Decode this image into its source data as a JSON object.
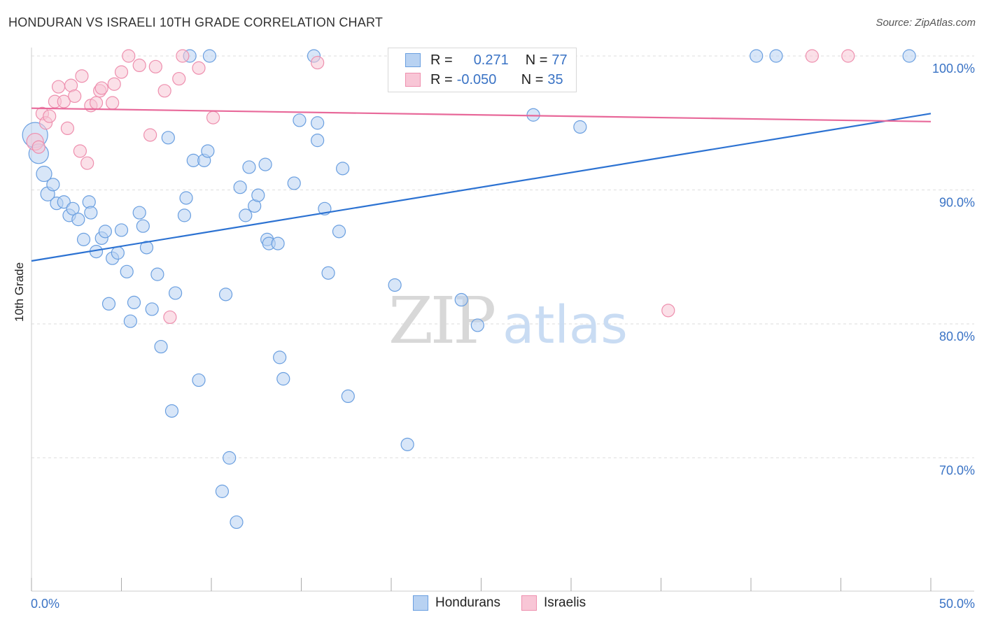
{
  "header": {
    "title": "HONDURAN VS ISRAELI 10TH GRADE CORRELATION CHART",
    "source": "Source: ZipAtlas.com"
  },
  "legend": {
    "hondurans": {
      "r_label": "R =",
      "r_value": "0.271",
      "n_label": "N =",
      "n_value": "77"
    },
    "israelis": {
      "r_label": "R =",
      "r_value": "-0.050",
      "n_label": "N =",
      "n_value": "35"
    }
  },
  "colors": {
    "blue_fill": "#b8d2f2",
    "blue_stroke": "#6a9fe0",
    "blue_line": "#2c72d2",
    "pink_fill": "#f8c6d6",
    "pink_stroke": "#ee8fae",
    "pink_line": "#e8699a",
    "axis_label": "#3a73c5",
    "grid": "#dedede"
  },
  "chart_data": {
    "type": "scatter",
    "title": "HONDURAN VS ISRAELI 10TH GRADE CORRELATION CHART",
    "xlabel": "",
    "ylabel": "10th Grade",
    "xlim": [
      0,
      50
    ],
    "ylim": [
      61.5,
      101.5
    ],
    "x_tick_labels": [
      "0.0%",
      "50.0%"
    ],
    "y_ticks": [
      70,
      80,
      90,
      100
    ],
    "y_tick_labels": [
      "70.0%",
      "80.0%",
      "90.0%",
      "100.0%"
    ],
    "grid": true,
    "legend_position": "top-center",
    "watermark": "ZIPatlas",
    "series": [
      {
        "name": "Hondurans",
        "r": 0.271,
        "n": 77,
        "trend": {
          "x": [
            0,
            50
          ],
          "y": [
            84.7,
            95.7
          ]
        },
        "points": [
          {
            "x": 0.2,
            "y": 94.1,
            "s": 18
          },
          {
            "x": 0.4,
            "y": 92.7,
            "s": 14
          },
          {
            "x": 0.7,
            "y": 91.2,
            "s": 11
          },
          {
            "x": 0.9,
            "y": 89.7,
            "s": 10
          },
          {
            "x": 1.2,
            "y": 90.4,
            "s": 9
          },
          {
            "x": 1.4,
            "y": 89.0,
            "s": 9
          },
          {
            "x": 1.8,
            "y": 89.1,
            "s": 9
          },
          {
            "x": 2.1,
            "y": 88.1,
            "s": 9
          },
          {
            "x": 2.3,
            "y": 88.6,
            "s": 9
          },
          {
            "x": 2.6,
            "y": 87.8,
            "s": 9
          },
          {
            "x": 2.9,
            "y": 86.3,
            "s": 9
          },
          {
            "x": 3.2,
            "y": 89.1,
            "s": 9
          },
          {
            "x": 3.3,
            "y": 88.3,
            "s": 9
          },
          {
            "x": 3.6,
            "y": 85.4,
            "s": 9
          },
          {
            "x": 3.9,
            "y": 86.4,
            "s": 9
          },
          {
            "x": 4.1,
            "y": 86.9,
            "s": 9
          },
          {
            "x": 4.3,
            "y": 81.5,
            "s": 9
          },
          {
            "x": 4.5,
            "y": 84.9,
            "s": 9
          },
          {
            "x": 4.8,
            "y": 85.3,
            "s": 9
          },
          {
            "x": 5.0,
            "y": 87.0,
            "s": 9
          },
          {
            "x": 5.3,
            "y": 83.9,
            "s": 9
          },
          {
            "x": 5.5,
            "y": 80.2,
            "s": 9
          },
          {
            "x": 5.7,
            "y": 81.6,
            "s": 9
          },
          {
            "x": 6.0,
            "y": 88.3,
            "s": 9
          },
          {
            "x": 6.2,
            "y": 87.3,
            "s": 9
          },
          {
            "x": 6.4,
            "y": 85.7,
            "s": 9
          },
          {
            "x": 6.7,
            "y": 81.1,
            "s": 9
          },
          {
            "x": 7.0,
            "y": 83.7,
            "s": 9
          },
          {
            "x": 7.2,
            "y": 78.3,
            "s": 9
          },
          {
            "x": 7.6,
            "y": 93.9,
            "s": 9
          },
          {
            "x": 7.8,
            "y": 73.5,
            "s": 9
          },
          {
            "x": 8.0,
            "y": 82.3,
            "s": 9
          },
          {
            "x": 8.5,
            "y": 88.1,
            "s": 9
          },
          {
            "x": 8.6,
            "y": 89.4,
            "s": 9
          },
          {
            "x": 8.8,
            "y": 100.0,
            "s": 9
          },
          {
            "x": 9.0,
            "y": 92.2,
            "s": 9
          },
          {
            "x": 9.3,
            "y": 75.8,
            "s": 9
          },
          {
            "x": 9.6,
            "y": 92.2,
            "s": 9
          },
          {
            "x": 9.8,
            "y": 92.9,
            "s": 9
          },
          {
            "x": 9.9,
            "y": 100.0,
            "s": 9
          },
          {
            "x": 10.6,
            "y": 67.5,
            "s": 9
          },
          {
            "x": 10.8,
            "y": 82.2,
            "s": 9
          },
          {
            "x": 11.0,
            "y": 70.0,
            "s": 9
          },
          {
            "x": 11.4,
            "y": 65.2,
            "s": 9
          },
          {
            "x": 11.6,
            "y": 90.2,
            "s": 9
          },
          {
            "x": 11.9,
            "y": 88.1,
            "s": 9
          },
          {
            "x": 12.1,
            "y": 91.7,
            "s": 9
          },
          {
            "x": 12.4,
            "y": 88.8,
            "s": 9
          },
          {
            "x": 12.6,
            "y": 89.6,
            "s": 9
          },
          {
            "x": 13.0,
            "y": 91.9,
            "s": 9
          },
          {
            "x": 13.1,
            "y": 86.3,
            "s": 9
          },
          {
            "x": 13.2,
            "y": 86.0,
            "s": 9
          },
          {
            "x": 13.7,
            "y": 86.0,
            "s": 9
          },
          {
            "x": 13.8,
            "y": 77.5,
            "s": 9
          },
          {
            "x": 14.0,
            "y": 75.9,
            "s": 9
          },
          {
            "x": 14.6,
            "y": 90.5,
            "s": 9
          },
          {
            "x": 14.9,
            "y": 95.2,
            "s": 9
          },
          {
            "x": 15.7,
            "y": 100.0,
            "s": 9
          },
          {
            "x": 15.9,
            "y": 93.7,
            "s": 9
          },
          {
            "x": 15.9,
            "y": 95.0,
            "s": 9
          },
          {
            "x": 16.3,
            "y": 88.6,
            "s": 9
          },
          {
            "x": 16.5,
            "y": 83.8,
            "s": 9
          },
          {
            "x": 17.1,
            "y": 86.9,
            "s": 9
          },
          {
            "x": 17.3,
            "y": 91.6,
            "s": 9
          },
          {
            "x": 17.6,
            "y": 74.6,
            "s": 9
          },
          {
            "x": 20.2,
            "y": 82.9,
            "s": 9
          },
          {
            "x": 20.9,
            "y": 71.0,
            "s": 9
          },
          {
            "x": 23.9,
            "y": 81.8,
            "s": 9
          },
          {
            "x": 24.8,
            "y": 79.9,
            "s": 9
          },
          {
            "x": 25.0,
            "y": 100.0,
            "s": 9
          },
          {
            "x": 27.9,
            "y": 95.6,
            "s": 9
          },
          {
            "x": 28.5,
            "y": 100.0,
            "s": 9
          },
          {
            "x": 30.5,
            "y": 94.7,
            "s": 9
          },
          {
            "x": 40.3,
            "y": 100.0,
            "s": 9
          },
          {
            "x": 41.4,
            "y": 100.0,
            "s": 9
          },
          {
            "x": 48.8,
            "y": 100.0,
            "s": 9
          }
        ]
      },
      {
        "name": "Israelis",
        "r": -0.05,
        "n": 35,
        "trend": {
          "x": [
            0,
            50
          ],
          "y": [
            96.1,
            95.1
          ]
        },
        "points": [
          {
            "x": 0.2,
            "y": 93.6,
            "s": 12
          },
          {
            "x": 0.4,
            "y": 93.2,
            "s": 9
          },
          {
            "x": 0.6,
            "y": 95.7,
            "s": 9
          },
          {
            "x": 0.8,
            "y": 95.0,
            "s": 9
          },
          {
            "x": 1.0,
            "y": 95.5,
            "s": 9
          },
          {
            "x": 1.3,
            "y": 96.6,
            "s": 9
          },
          {
            "x": 1.5,
            "y": 97.7,
            "s": 9
          },
          {
            "x": 1.8,
            "y": 96.6,
            "s": 9
          },
          {
            "x": 2.0,
            "y": 94.6,
            "s": 9
          },
          {
            "x": 2.2,
            "y": 97.8,
            "s": 9
          },
          {
            "x": 2.4,
            "y": 97.0,
            "s": 9
          },
          {
            "x": 2.7,
            "y": 92.9,
            "s": 9
          },
          {
            "x": 2.8,
            "y": 98.5,
            "s": 9
          },
          {
            "x": 3.1,
            "y": 92.0,
            "s": 9
          },
          {
            "x": 3.3,
            "y": 96.3,
            "s": 9
          },
          {
            "x": 3.6,
            "y": 96.5,
            "s": 9
          },
          {
            "x": 3.8,
            "y": 97.4,
            "s": 9
          },
          {
            "x": 3.9,
            "y": 97.6,
            "s": 9
          },
          {
            "x": 4.5,
            "y": 96.5,
            "s": 9
          },
          {
            "x": 4.6,
            "y": 97.9,
            "s": 9
          },
          {
            "x": 5.0,
            "y": 98.8,
            "s": 9
          },
          {
            "x": 5.4,
            "y": 100.0,
            "s": 9
          },
          {
            "x": 6.0,
            "y": 99.3,
            "s": 9
          },
          {
            "x": 6.6,
            "y": 94.1,
            "s": 9
          },
          {
            "x": 6.9,
            "y": 99.2,
            "s": 9
          },
          {
            "x": 7.4,
            "y": 97.4,
            "s": 9
          },
          {
            "x": 7.7,
            "y": 80.5,
            "s": 9
          },
          {
            "x": 8.2,
            "y": 98.3,
            "s": 9
          },
          {
            "x": 8.4,
            "y": 100.0,
            "s": 9
          },
          {
            "x": 9.3,
            "y": 99.1,
            "s": 9
          },
          {
            "x": 10.1,
            "y": 95.4,
            "s": 9
          },
          {
            "x": 15.9,
            "y": 99.5,
            "s": 9
          },
          {
            "x": 35.4,
            "y": 81.0,
            "s": 9
          },
          {
            "x": 43.4,
            "y": 100.0,
            "s": 9
          },
          {
            "x": 45.4,
            "y": 100.0,
            "s": 9
          }
        ]
      }
    ]
  }
}
